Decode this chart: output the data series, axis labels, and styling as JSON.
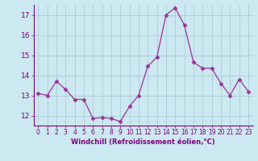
{
  "x": [
    0,
    1,
    2,
    3,
    4,
    5,
    6,
    7,
    8,
    9,
    10,
    11,
    12,
    13,
    14,
    15,
    16,
    17,
    18,
    19,
    20,
    21,
    22,
    23
  ],
  "y": [
    13.1,
    13.0,
    13.7,
    13.3,
    12.8,
    12.8,
    11.85,
    11.9,
    11.85,
    11.7,
    12.45,
    13.0,
    14.45,
    14.9,
    17.0,
    17.35,
    16.5,
    14.65,
    14.35,
    14.35,
    13.6,
    13.0,
    13.8,
    13.2
  ],
  "xlim": [
    -0.5,
    23.5
  ],
  "ylim": [
    11.5,
    17.5
  ],
  "yticks": [
    12,
    13,
    14,
    15,
    16,
    17
  ],
  "xticks": [
    0,
    1,
    2,
    3,
    4,
    5,
    6,
    7,
    8,
    9,
    10,
    11,
    12,
    13,
    14,
    15,
    16,
    17,
    18,
    19,
    20,
    21,
    22,
    23
  ],
  "xlabel": "Windchill (Refroidissement éolien,°C)",
  "line_color": "#993399",
  "marker": "D",
  "marker_size": 2.5,
  "bg_color": "#cce8f0",
  "grid_color": "#aaccd8",
  "spine_color": "#7f007f",
  "tick_color": "#7f007f",
  "label_color": "#7f007f"
}
